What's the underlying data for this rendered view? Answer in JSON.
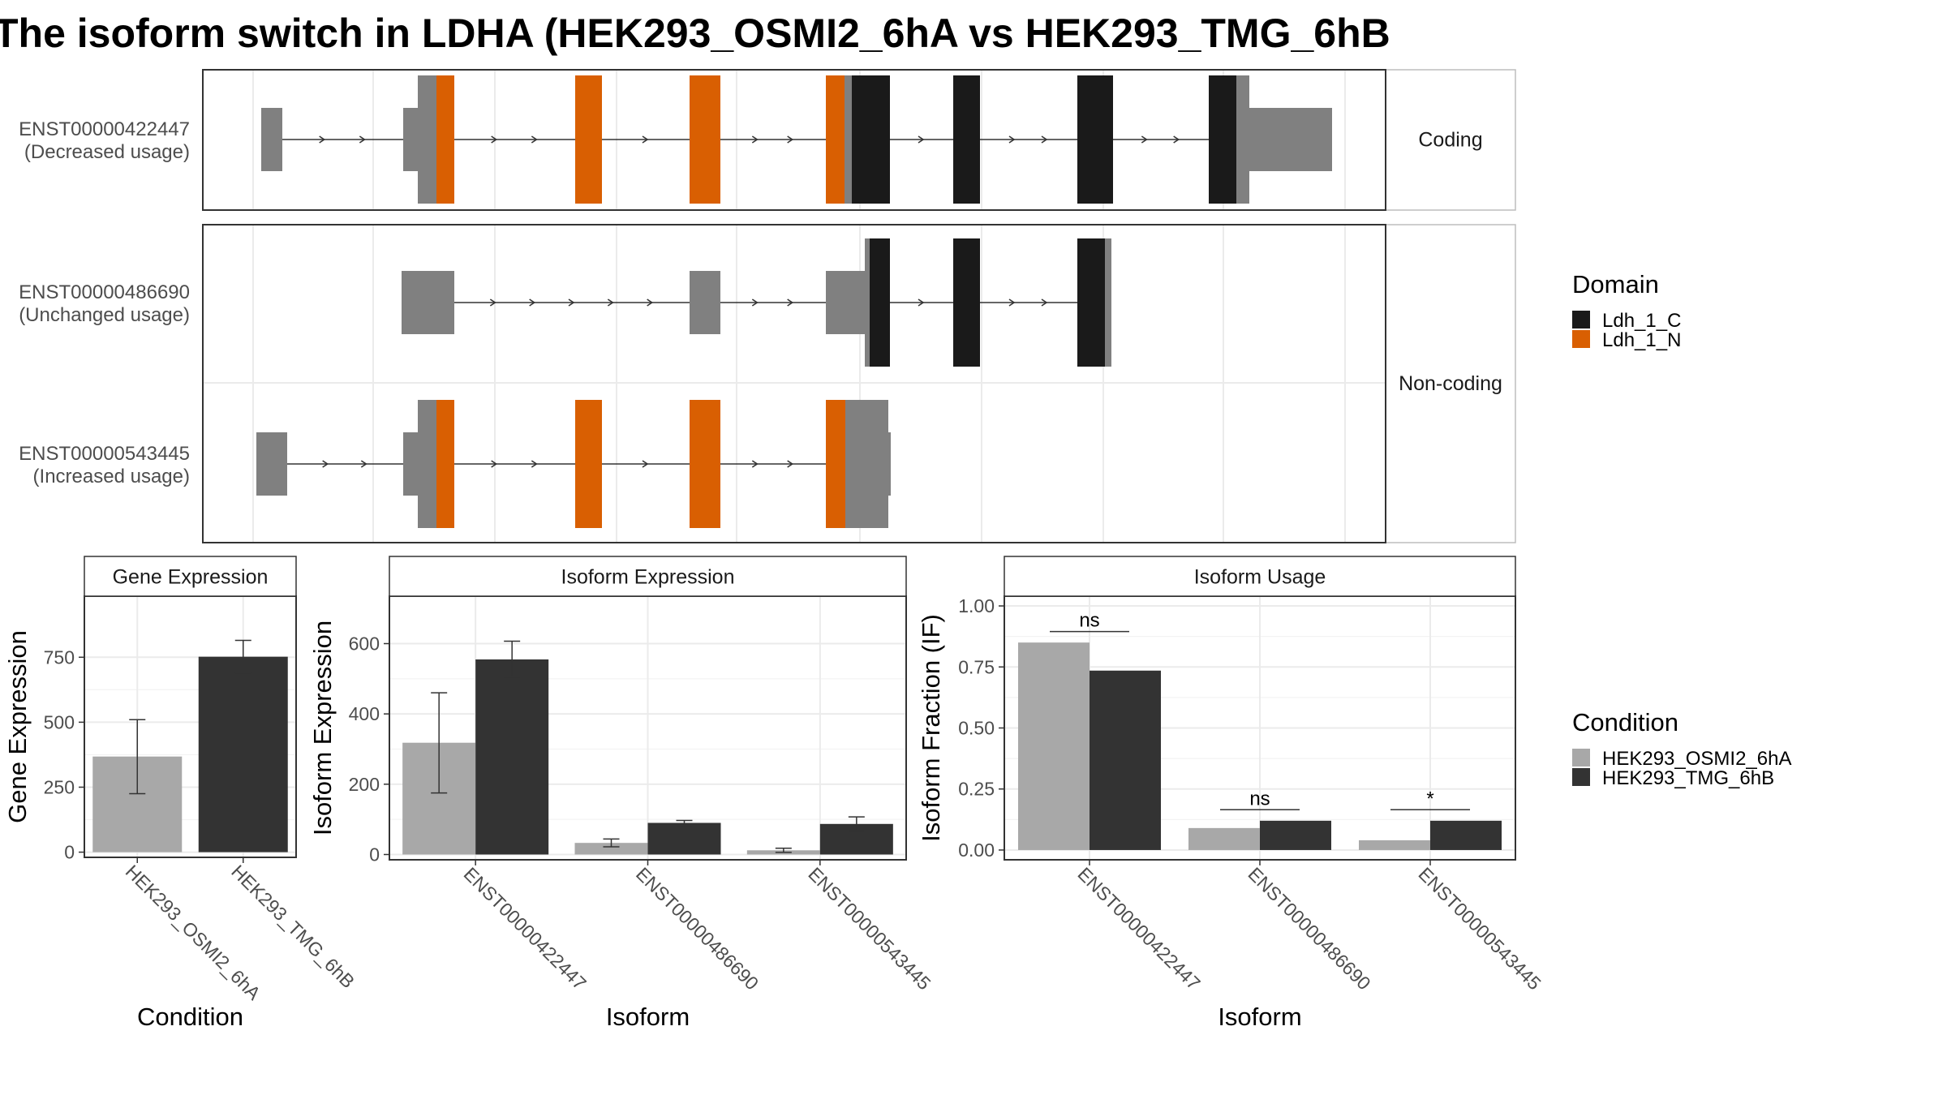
{
  "title": "The isoform switch in LDHA (HEK293_OSMI2_6hA vs HEK293_TMG_6hB",
  "colors": {
    "ldh_c": "#1a1a1a",
    "ldh_n": "#d95f02",
    "utr": "#808080",
    "cond_a": "#a8a8a8",
    "cond_b": "#333333",
    "strip": "#ffffff",
    "panel_border": "#333333",
    "grid": "#ebebeb"
  },
  "structure": {
    "facets": [
      "Coding",
      "Non-coding"
    ],
    "isoforms": [
      {
        "id": "ENST00000422447",
        "usage": "(Decreased usage)",
        "facet": "Coding"
      },
      {
        "id": "ENST00000486690",
        "usage": "(Unchanged usage)",
        "facet": "Non-coding"
      },
      {
        "id": "ENST00000543445",
        "usage": "(Increased usage)",
        "facet": "Non-coding"
      }
    ],
    "legend_title": "Domain",
    "legend_items": [
      {
        "label": "Ldh_1_C",
        "color": "#1a1a1a"
      },
      {
        "label": "Ldh_1_N",
        "color": "#d95f02"
      }
    ]
  },
  "chart_data": [
    {
      "type": "bar",
      "title": "Gene Expression",
      "xlabel": "Condition",
      "ylabel": "Gene Expression",
      "categories": [
        "HEK293_OSMI2_6hA",
        "HEK293_TMG_6hB"
      ],
      "values": [
        368,
        752
      ],
      "err_low": [
        225,
        690
      ],
      "err_high": [
        510,
        815
      ],
      "ylim": [
        -20,
        985
      ],
      "yticks": [
        0,
        250,
        500,
        750
      ]
    },
    {
      "type": "bar",
      "title": "Isoform Expression",
      "xlabel": "Isoform",
      "ylabel": "Isoform Expression",
      "categories": [
        "ENST00000422447",
        "ENST00000486690",
        "ENST00000543445"
      ],
      "series": [
        {
          "name": "HEK293_OSMI2_6hA",
          "values": [
            318,
            33,
            12
          ],
          "err_low": [
            175,
            22,
            6
          ],
          "err_high": [
            460,
            44,
            18
          ]
        },
        {
          "name": "HEK293_TMG_6hB",
          "values": [
            555,
            90,
            87
          ],
          "err_low": [
            505,
            83,
            67
          ],
          "err_high": [
            607,
            97,
            107
          ]
        }
      ],
      "ylim": [
        -15,
        735
      ],
      "yticks": [
        0,
        200,
        400,
        600
      ]
    },
    {
      "type": "bar",
      "title": "Isoform Usage",
      "xlabel": "Isoform",
      "ylabel": "Isoform Fraction (IF)",
      "categories": [
        "ENST00000422447",
        "ENST00000486690",
        "ENST00000543445"
      ],
      "series": [
        {
          "name": "HEK293_OSMI2_6hA",
          "values": [
            0.85,
            0.09,
            0.04
          ]
        },
        {
          "name": "HEK293_TMG_6hB",
          "values": [
            0.735,
            0.12,
            0.12
          ]
        }
      ],
      "significance": [
        "ns",
        "ns",
        "*"
      ],
      "sig_y": [
        0.895,
        0.165,
        0.165
      ],
      "ylim": [
        -0.04,
        1.04
      ],
      "yticks": [
        "0.00",
        "0.25",
        "0.50",
        "0.75",
        "1.00"
      ]
    }
  ],
  "condition_legend": {
    "title": "Condition",
    "items": [
      {
        "label": "HEK293_OSMI2_6hA",
        "color": "#a8a8a8"
      },
      {
        "label": "HEK293_TMG_6hB",
        "color": "#333333"
      }
    ]
  }
}
